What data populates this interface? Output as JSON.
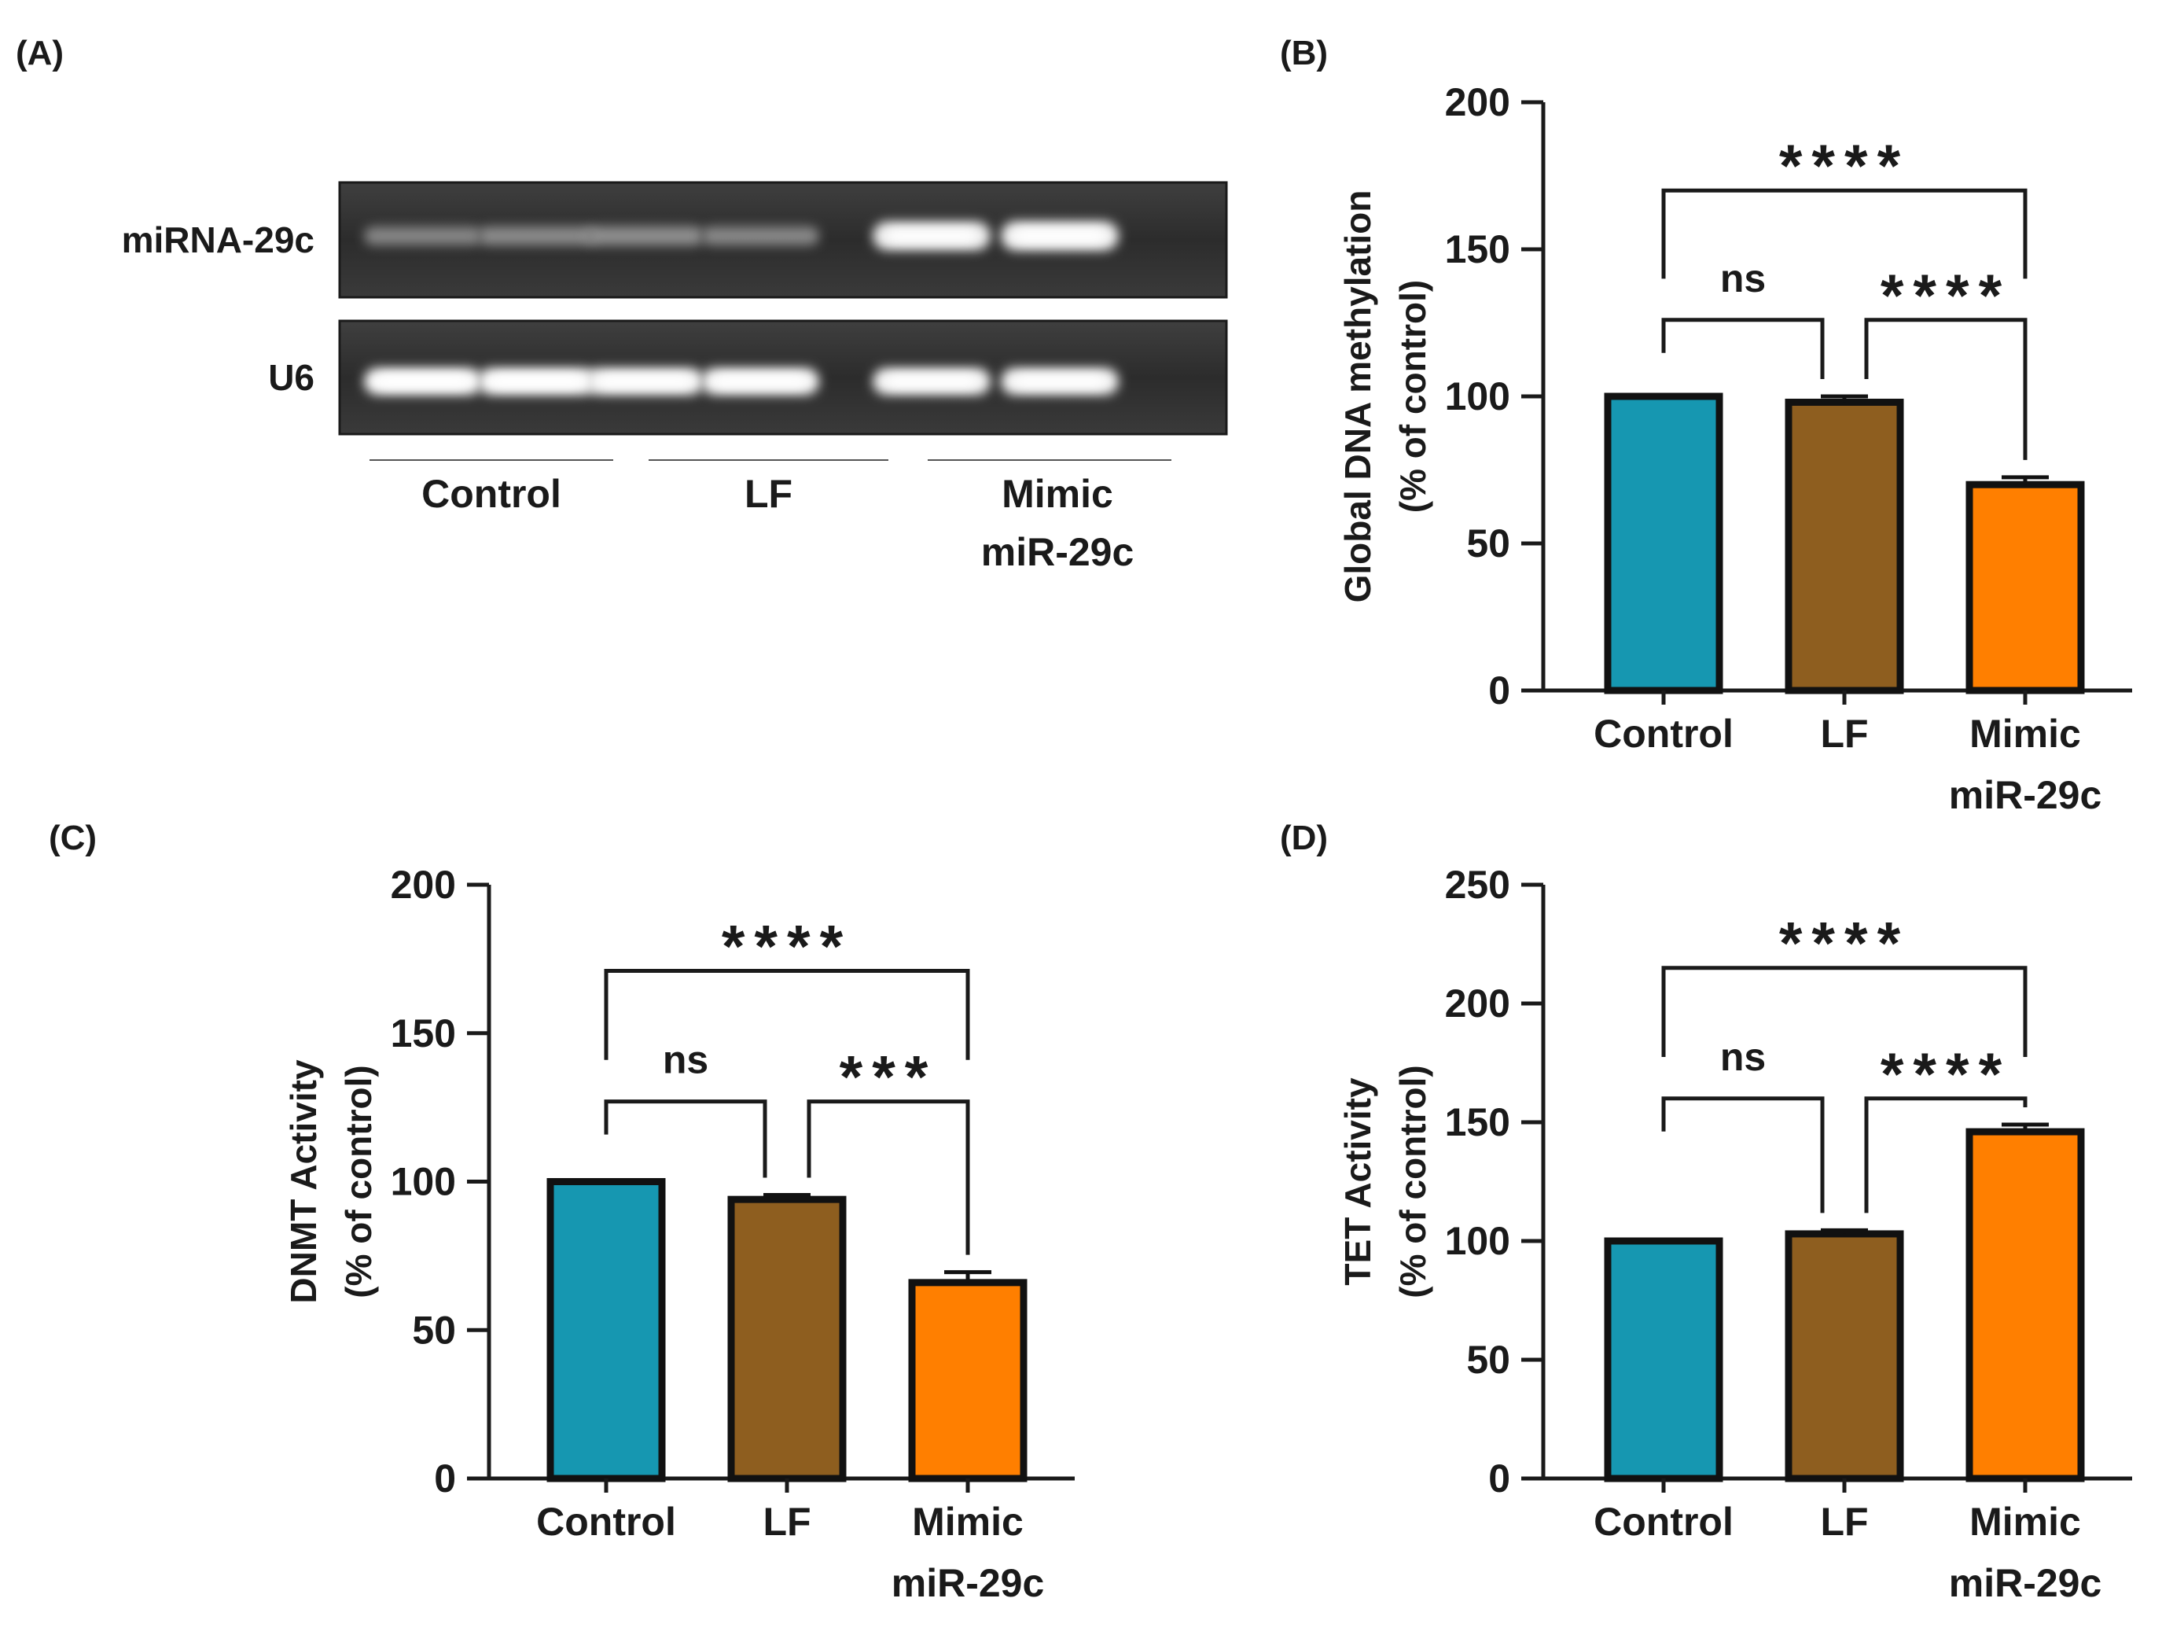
{
  "gel": {
    "panel_label": "(A)",
    "row_labels": [
      "miRNA-29c",
      "U6"
    ],
    "groups": [
      {
        "lines": [
          "Control"
        ]
      },
      {
        "lines": [
          "LF"
        ]
      },
      {
        "lines": [
          "Mimic",
          "miR-29c"
        ]
      }
    ],
    "band_intensity": {
      "miRNA-29c": [
        0.35,
        0.38,
        0.4,
        0.36,
        0.92,
        0.95
      ],
      "U6": [
        1.0,
        1.0,
        0.98,
        0.98,
        0.96,
        0.96
      ]
    }
  },
  "chart_data": [
    {
      "id": "B",
      "panel_label": "(B)",
      "type": "bar",
      "title": "",
      "xlabel": "",
      "ylabel_lines": [
        "Global DNA methylation",
        "(% of control)"
      ],
      "categories": [
        [
          "Control"
        ],
        [
          "LF"
        ],
        [
          "Mimic",
          "miR-29c"
        ]
      ],
      "values": [
        100,
        98,
        70
      ],
      "errors": [
        0,
        2,
        2.5
      ],
      "colors": [
        "#1697b1",
        "#8e5e1f",
        "#ff7f00"
      ],
      "ylim": [
        0,
        200
      ],
      "yticks": [
        0,
        50,
        100,
        150,
        200
      ],
      "comparisons": [
        {
          "from": 0,
          "to": 2,
          "label": "****",
          "y": 170
        },
        {
          "from": 0,
          "to": 1,
          "label": "ns",
          "y": 126
        },
        {
          "from": 1,
          "to": 2,
          "label": "****",
          "y": 126
        }
      ]
    },
    {
      "id": "C",
      "panel_label": "(C)",
      "type": "bar",
      "title": "",
      "xlabel": "",
      "ylabel_lines": [
        "DNMT Activity",
        "(% of control)"
      ],
      "categories": [
        [
          "Control"
        ],
        [
          "LF"
        ],
        [
          "Mimic",
          "miR-29c"
        ]
      ],
      "values": [
        100,
        94,
        66
      ],
      "errors": [
        0,
        1.5,
        3.5
      ],
      "colors": [
        "#1697b1",
        "#8e5e1f",
        "#ff7f00"
      ],
      "ylim": [
        0,
        200
      ],
      "yticks": [
        0,
        50,
        100,
        150,
        200
      ],
      "comparisons": [
        {
          "from": 0,
          "to": 2,
          "label": "****",
          "y": 171
        },
        {
          "from": 0,
          "to": 1,
          "label": "ns",
          "y": 127
        },
        {
          "from": 1,
          "to": 2,
          "label": "***",
          "y": 127
        }
      ]
    },
    {
      "id": "D",
      "panel_label": "(D)",
      "type": "bar",
      "title": "",
      "xlabel": "",
      "ylabel_lines": [
        "TET Activity",
        "(% of control)"
      ],
      "categories": [
        [
          "Control"
        ],
        [
          "LF"
        ],
        [
          "Mimic",
          "miR-29c"
        ]
      ],
      "values": [
        100,
        103,
        146
      ],
      "errors": [
        0,
        1.5,
        3
      ],
      "colors": [
        "#1697b1",
        "#8e5e1f",
        "#ff7f00"
      ],
      "ylim": [
        0,
        250
      ],
      "yticks": [
        0,
        50,
        100,
        150,
        200,
        250
      ],
      "comparisons": [
        {
          "from": 0,
          "to": 2,
          "label": "****",
          "y": 215
        },
        {
          "from": 0,
          "to": 1,
          "label": "ns",
          "y": 160
        },
        {
          "from": 1,
          "to": 2,
          "label": "****",
          "y": 160
        }
      ]
    }
  ]
}
